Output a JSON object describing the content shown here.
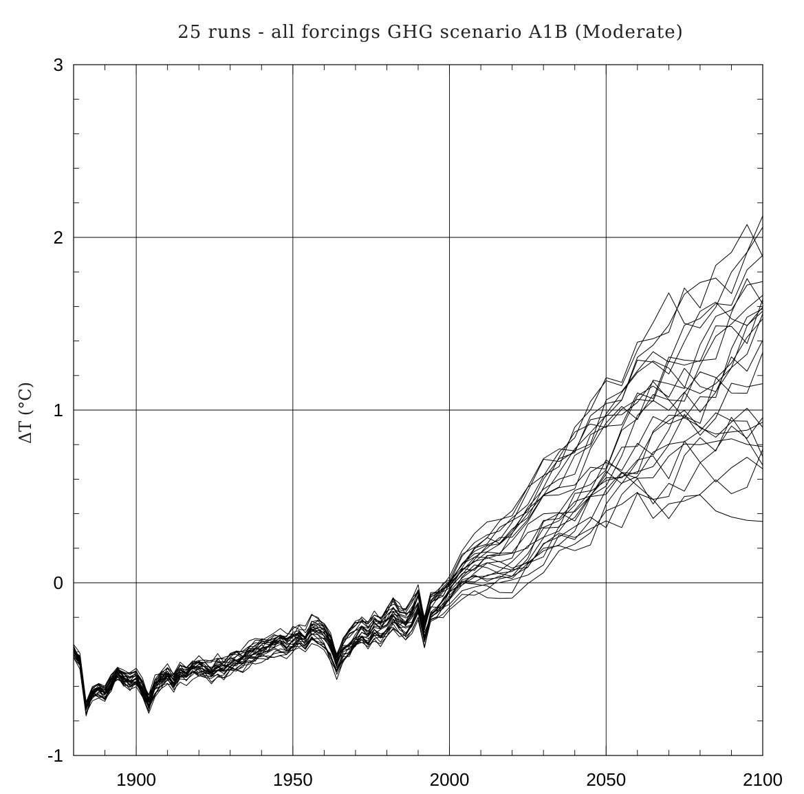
{
  "chart_data": {
    "type": "line",
    "title": "25 runs - all forcings GHG scenario A1B (Moderate)",
    "xlabel": "",
    "ylabel": "ΔT (°C)",
    "xlim": [
      1880,
      2100
    ],
    "ylim": [
      -1,
      3
    ],
    "xticks": [
      1900,
      1950,
      2000,
      2050,
      2100
    ],
    "xtick_labels": [
      "1900",
      "1950",
      "2000",
      "2050",
      "2100"
    ],
    "yticks": [
      -1,
      0,
      1,
      2,
      3
    ],
    "ytick_labels": [
      "-1",
      "0",
      "1",
      "2",
      "3"
    ],
    "grid": true,
    "line_color": "#000000",
    "run_count": 25,
    "ensemble": {
      "x": [
        1880,
        1882,
        1884,
        1886,
        1888,
        1890,
        1892,
        1894,
        1896,
        1898,
        1900,
        1902,
        1904,
        1906,
        1908,
        1910,
        1912,
        1914,
        1916,
        1918,
        1920,
        1922,
        1924,
        1926,
        1928,
        1930,
        1932,
        1934,
        1936,
        1938,
        1940,
        1942,
        1944,
        1946,
        1948,
        1950,
        1952,
        1954,
        1956,
        1958,
        1960,
        1962,
        1964,
        1966,
        1968,
        1970,
        1972,
        1974,
        1976,
        1978,
        1980,
        1982,
        1984,
        1986,
        1988,
        1990,
        1992,
        1994,
        1996,
        1998,
        2000,
        2004,
        2008,
        2012,
        2016,
        2020,
        2025,
        2030,
        2035,
        2040,
        2045,
        2050,
        2055,
        2060,
        2065,
        2070,
        2075,
        2080,
        2085,
        2090,
        2095,
        2100
      ],
      "mean": [
        -0.4,
        -0.45,
        -0.72,
        -0.64,
        -0.62,
        -0.64,
        -0.58,
        -0.52,
        -0.55,
        -0.57,
        -0.56,
        -0.62,
        -0.7,
        -0.6,
        -0.56,
        -0.53,
        -0.57,
        -0.51,
        -0.53,
        -0.5,
        -0.49,
        -0.5,
        -0.52,
        -0.48,
        -0.49,
        -0.47,
        -0.46,
        -0.45,
        -0.42,
        -0.4,
        -0.38,
        -0.37,
        -0.35,
        -0.34,
        -0.36,
        -0.33,
        -0.31,
        -0.33,
        -0.27,
        -0.28,
        -0.3,
        -0.37,
        -0.47,
        -0.38,
        -0.35,
        -0.31,
        -0.28,
        -0.3,
        -0.25,
        -0.27,
        -0.23,
        -0.18,
        -0.22,
        -0.24,
        -0.2,
        -0.12,
        -0.28,
        -0.15,
        -0.12,
        -0.09,
        -0.04,
        0.06,
        0.1,
        0.13,
        0.15,
        0.18,
        0.28,
        0.4,
        0.47,
        0.55,
        0.64,
        0.72,
        0.8,
        0.88,
        0.94,
        1.0,
        1.05,
        1.1,
        1.15,
        1.2,
        1.25,
        1.3
      ]
    }
  }
}
